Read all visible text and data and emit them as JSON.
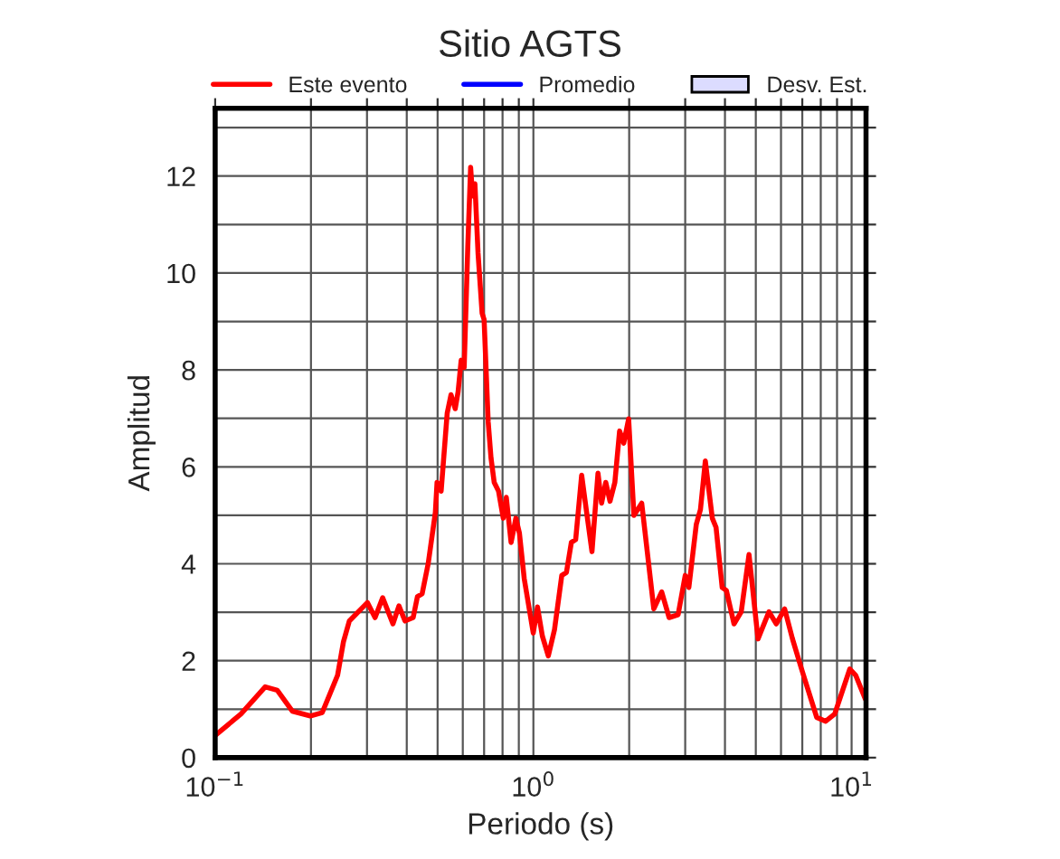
{
  "chart_data": {
    "type": "line",
    "title": "Sitio AGTS",
    "xlabel": "Periodo (s)",
    "ylabel": "Amplitud",
    "log": "x",
    "grid": true,
    "legend": "top",
    "xlim": [
      0.1,
      11.1
    ],
    "ylim": [
      0,
      13.4
    ],
    "xticks": [
      {
        "value": 0.1,
        "label": "10$^{−1}$"
      },
      {
        "value": 0.2,
        "label": null
      },
      {
        "value": 0.3,
        "label": null
      },
      {
        "value": 0.4,
        "label": null
      },
      {
        "value": 0.5,
        "label": null
      },
      {
        "value": 0.6,
        "label": null
      },
      {
        "value": 0.7,
        "label": null
      },
      {
        "value": 0.8,
        "label": null
      },
      {
        "value": 0.9,
        "label": null
      },
      {
        "value": 1,
        "label": "10$^{0}$"
      },
      {
        "value": 2,
        "label": null
      },
      {
        "value": 3,
        "label": null
      },
      {
        "value": 4,
        "label": null
      },
      {
        "value": 5,
        "label": null
      },
      {
        "value": 6,
        "label": null
      },
      {
        "value": 7,
        "label": null
      },
      {
        "value": 8,
        "label": null
      },
      {
        "value": 9,
        "label": null
      },
      {
        "value": 10,
        "label": "10$^{1}$"
      }
    ],
    "yticks": [
      0,
      {
        "value": 1,
        "label": null
      },
      2,
      {
        "value": 3,
        "label": null
      },
      4,
      {
        "value": 5,
        "label": null
      },
      6,
      {
        "value": 7,
        "label": null
      },
      8,
      {
        "value": 9,
        "label": null
      },
      10,
      {
        "value": 11,
        "label": null
      },
      12,
      {
        "value": 13,
        "label": null
      }
    ],
    "series": [
      {
        "name": "Este evento",
        "color": "#ff0000",
        "x": [
          0.1,
          0.1205,
          0.1436,
          0.1567,
          0.1747,
          0.199,
          0.217,
          0.2425,
          0.253,
          0.264,
          0.301,
          0.318,
          0.336,
          0.362,
          0.378,
          0.395,
          0.419,
          0.432,
          0.447,
          0.467,
          0.492,
          0.498,
          0.513,
          0.536,
          0.551,
          0.568,
          0.58,
          0.593,
          0.606,
          0.622,
          0.635,
          0.644,
          0.655,
          0.67,
          0.69,
          0.7,
          0.721,
          0.736,
          0.753,
          0.777,
          0.804,
          0.822,
          0.851,
          0.881,
          0.904,
          0.936,
          0.999,
          1.03,
          1.067,
          1.114,
          1.165,
          1.228,
          1.27,
          1.316,
          1.358,
          1.418,
          1.47,
          1.528,
          1.596,
          1.638,
          1.688,
          1.741,
          1.803,
          1.866,
          1.923,
          1.992,
          2.07,
          2.19,
          2.39,
          2.53,
          2.67,
          2.85,
          3.0,
          3.08,
          3.25,
          3.35,
          3.47,
          3.65,
          3.75,
          3.92,
          4.04,
          4.27,
          4.5,
          4.76,
          5.08,
          5.5,
          5.8,
          6.16,
          6.52,
          6.96,
          7.77,
          8.29,
          8.85,
          9.87,
          10.3,
          11.04
        ],
        "values": [
          0.46,
          0.9,
          1.46,
          1.39,
          0.96,
          0.86,
          0.93,
          1.7,
          2.39,
          2.82,
          3.2,
          2.89,
          3.3,
          2.76,
          3.13,
          2.82,
          2.89,
          3.32,
          3.38,
          4.0,
          5.06,
          5.68,
          5.5,
          7.11,
          7.49,
          7.2,
          7.55,
          8.2,
          8.05,
          10.53,
          12.18,
          11.59,
          11.84,
          10.41,
          9.17,
          9.04,
          6.93,
          6.18,
          5.68,
          5.5,
          4.94,
          5.37,
          4.44,
          4.94,
          4.63,
          3.69,
          2.57,
          3.11,
          2.51,
          2.1,
          2.64,
          3.76,
          3.82,
          4.44,
          4.5,
          5.83,
          5.06,
          4.25,
          5.87,
          5.25,
          5.68,
          5.29,
          5.68,
          6.74,
          6.49,
          6.99,
          5.0,
          5.25,
          3.07,
          3.42,
          2.89,
          2.95,
          3.76,
          3.51,
          4.81,
          5.12,
          6.12,
          4.94,
          4.75,
          3.51,
          3.45,
          2.76,
          3.01,
          4.19,
          2.45,
          3.01,
          2.76,
          3.07,
          2.45,
          1.83,
          0.83,
          0.75,
          0.9,
          1.83,
          1.7,
          1.21
        ]
      },
      {
        "name": "Promedio",
        "color": "#0000ff"
      },
      {
        "name": "Desv. Est.",
        "type": "area",
        "color": "#dcdcff"
      }
    ]
  }
}
